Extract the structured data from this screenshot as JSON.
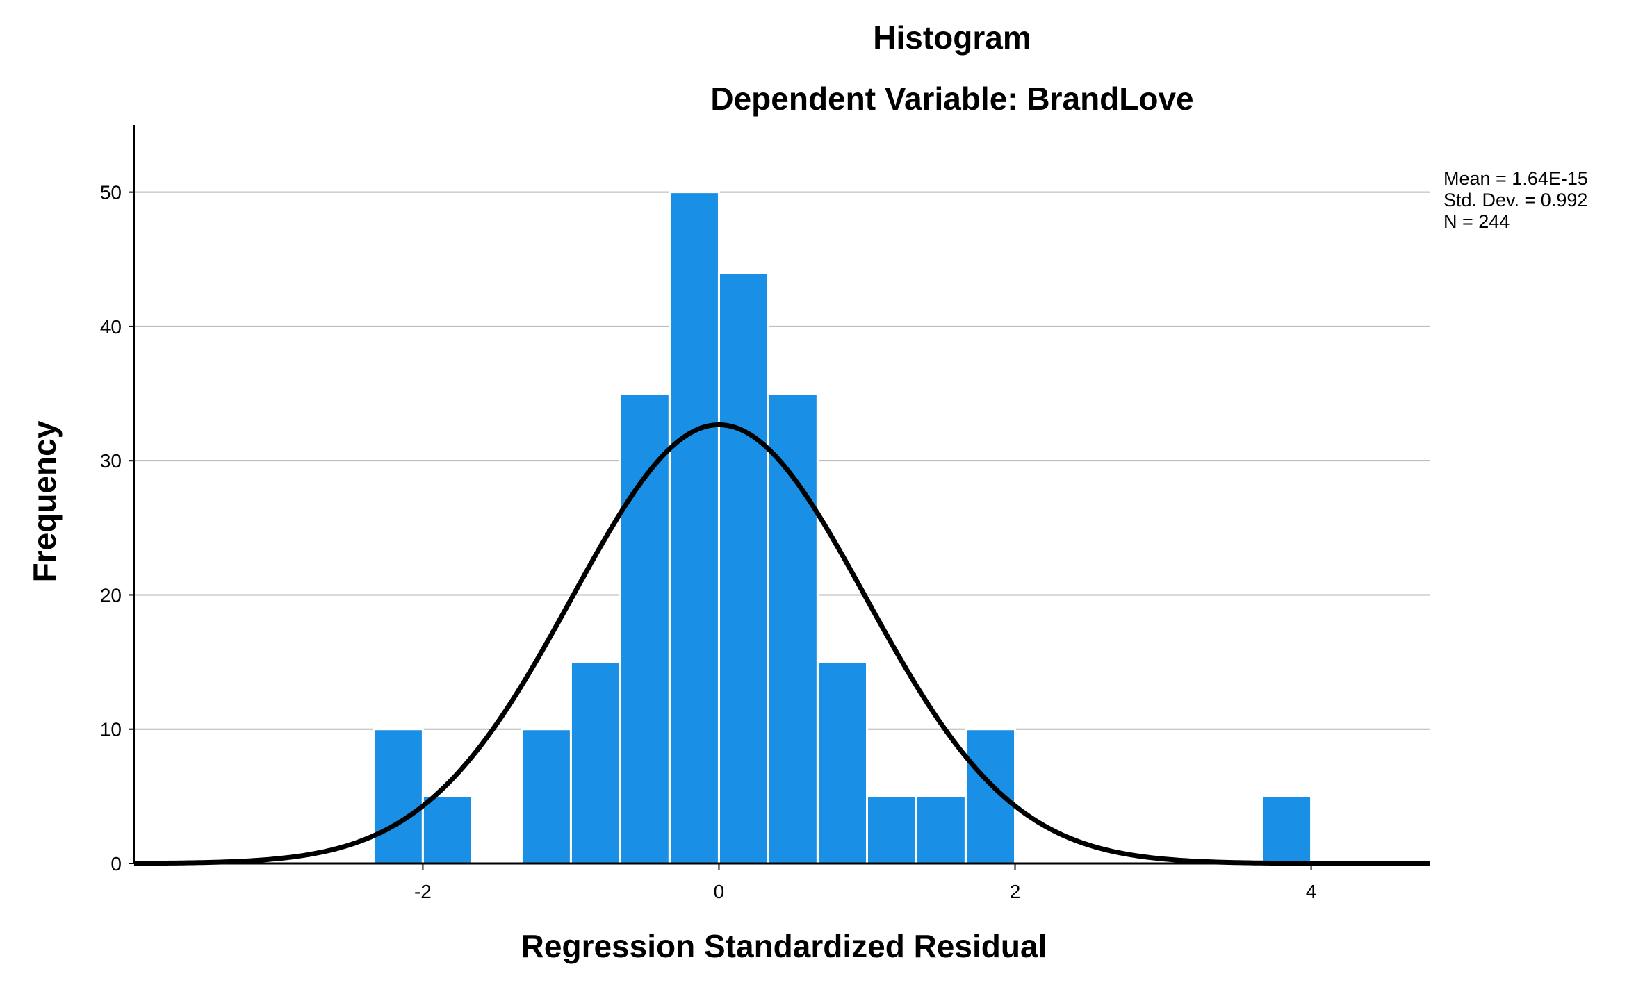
{
  "chart_data": {
    "type": "bar",
    "title": "Histogram",
    "subtitle": "Dependent Variable: BrandLove",
    "xlabel": "Regression Standardized Residual",
    "ylabel": "Frequency",
    "xlim": [
      -3.95,
      4.8
    ],
    "ylim": [
      0,
      55
    ],
    "x_ticks": [
      -2,
      0,
      2,
      4
    ],
    "x_tick_labels": [
      "-2",
      "0",
      "2",
      "4"
    ],
    "y_ticks": [
      0,
      10,
      20,
      30,
      40,
      50
    ],
    "y_tick_labels": [
      "0",
      "10",
      "20",
      "30",
      "40",
      "50"
    ],
    "grid": true,
    "bin_width": 0.333,
    "bins": [
      {
        "start": -2.333,
        "value": 10
      },
      {
        "start": -2.0,
        "value": 5
      },
      {
        "start": -1.333,
        "value": 10
      },
      {
        "start": -1.0,
        "value": 15
      },
      {
        "start": -0.667,
        "value": 35
      },
      {
        "start": -0.333,
        "value": 50
      },
      {
        "start": 0.0,
        "value": 44
      },
      {
        "start": 0.333,
        "value": 35
      },
      {
        "start": 0.667,
        "value": 15
      },
      {
        "start": 1.0,
        "value": 5
      },
      {
        "start": 1.333,
        "value": 5
      },
      {
        "start": 1.667,
        "value": 10
      },
      {
        "start": 3.667,
        "value": 5
      }
    ],
    "normal_curve": {
      "mean": 0,
      "std_dev": 0.992,
      "n": 244
    },
    "stats": [
      "Mean = 1.64E-15",
      "Std. Dev. = 0.992",
      "N = 244"
    ],
    "bar_color": "#1a8fe6",
    "bar_edge_color": "#ffffff",
    "curve_color": "#000000",
    "grid_color": "#b5b5b5"
  }
}
